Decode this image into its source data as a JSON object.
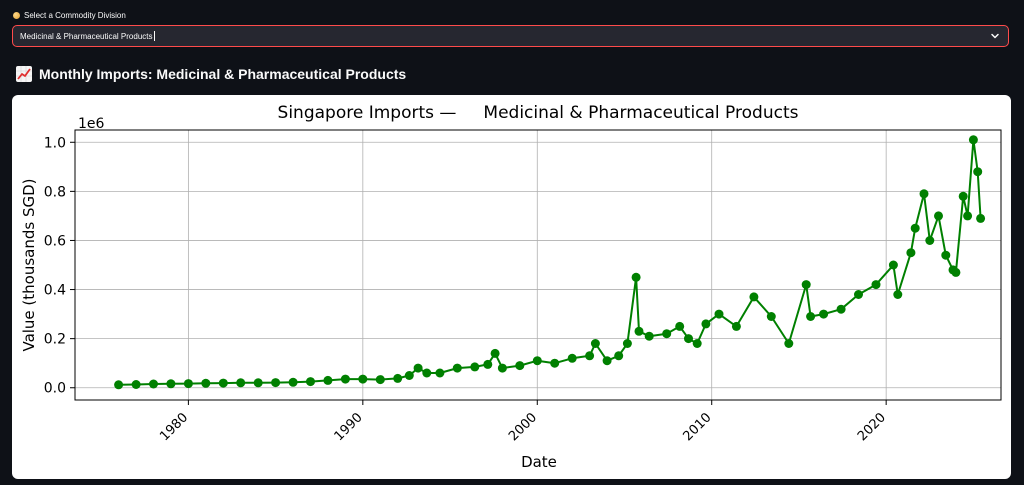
{
  "selector": {
    "label": "Select a Commodity Division",
    "value": "Medicinal & Pharmaceutical Products"
  },
  "section": {
    "title": "Monthly Imports: Medicinal & Pharmaceutical Products"
  },
  "colors": {
    "accent": "#ff4b4b",
    "series": "#008000",
    "background": "#0e1117"
  },
  "icons": {
    "section": "chart-increasing-icon",
    "dropdown": "chevron-down-icon",
    "label": "dot-icon"
  },
  "chart_data": {
    "type": "line",
    "title": "Singapore Imports —     Medicinal & Pharmaceutical Products",
    "xlabel": "Date",
    "ylabel": "Value (thousands SGD)",
    "offset_label": "1e6",
    "xlim": [
      "1973-07-01",
      "2026-08-01"
    ],
    "ylim": [
      -0.05,
      1.05
    ],
    "x_ticks": [
      "1980",
      "1990",
      "2000",
      "2010",
      "2020"
    ],
    "y_ticks": [
      "0.0",
      "0.2",
      "0.4",
      "0.6",
      "0.8",
      "1.0"
    ],
    "grid": true,
    "marker": "circle",
    "series": [
      {
        "color": "#008000",
        "points": [
          [
            "1976-01",
            0.012
          ],
          [
            "1977-01",
            0.013
          ],
          [
            "1978-01",
            0.015
          ],
          [
            "1979-01",
            0.016
          ],
          [
            "1980-01",
            0.017
          ],
          [
            "1981-01",
            0.018
          ],
          [
            "1982-01",
            0.019
          ],
          [
            "1983-01",
            0.02
          ],
          [
            "1984-01",
            0.02
          ],
          [
            "1985-01",
            0.021
          ],
          [
            "1986-01",
            0.022
          ],
          [
            "1987-01",
            0.025
          ],
          [
            "1988-01",
            0.03
          ],
          [
            "1989-01",
            0.035
          ],
          [
            "1990-01",
            0.035
          ],
          [
            "1991-01",
            0.033
          ],
          [
            "1992-01",
            0.038
          ],
          [
            "1992-09",
            0.05
          ],
          [
            "1993-03",
            0.08
          ],
          [
            "1993-09",
            0.06
          ],
          [
            "1994-06",
            0.06
          ],
          [
            "1995-06",
            0.08
          ],
          [
            "1996-06",
            0.085
          ],
          [
            "1997-03",
            0.095
          ],
          [
            "1997-08",
            0.14
          ],
          [
            "1998-01",
            0.08
          ],
          [
            "1999-01",
            0.09
          ],
          [
            "2000-01",
            0.11
          ],
          [
            "2001-01",
            0.1
          ],
          [
            "2002-01",
            0.12
          ],
          [
            "2003-01",
            0.13
          ],
          [
            "2003-05",
            0.18
          ],
          [
            "2004-01",
            0.11
          ],
          [
            "2004-09",
            0.13
          ],
          [
            "2005-03",
            0.18
          ],
          [
            "2005-09",
            0.45
          ],
          [
            "2005-11",
            0.23
          ],
          [
            "2006-06",
            0.21
          ],
          [
            "2007-06",
            0.22
          ],
          [
            "2008-03",
            0.25
          ],
          [
            "2008-09",
            0.2
          ],
          [
            "2009-03",
            0.18
          ],
          [
            "2009-09",
            0.26
          ],
          [
            "2010-06",
            0.3
          ],
          [
            "2011-06",
            0.25
          ],
          [
            "2012-06",
            0.37
          ],
          [
            "2013-06",
            0.29
          ],
          [
            "2014-06",
            0.18
          ],
          [
            "2015-06",
            0.42
          ],
          [
            "2015-09",
            0.29
          ],
          [
            "2016-06",
            0.3
          ],
          [
            "2017-06",
            0.32
          ],
          [
            "2018-06",
            0.38
          ],
          [
            "2019-06",
            0.42
          ],
          [
            "2020-06",
            0.5
          ],
          [
            "2020-09",
            0.38
          ],
          [
            "2021-06",
            0.55
          ],
          [
            "2021-09",
            0.65
          ],
          [
            "2022-03",
            0.79
          ],
          [
            "2022-07",
            0.6
          ],
          [
            "2023-01",
            0.7
          ],
          [
            "2023-06",
            0.54
          ],
          [
            "2023-11",
            0.48
          ],
          [
            "2024-01",
            0.47
          ],
          [
            "2024-06",
            0.78
          ],
          [
            "2024-09",
            0.7
          ],
          [
            "2025-01",
            1.01
          ],
          [
            "2025-04",
            0.88
          ],
          [
            "2025-06",
            0.69
          ]
        ]
      }
    ]
  }
}
